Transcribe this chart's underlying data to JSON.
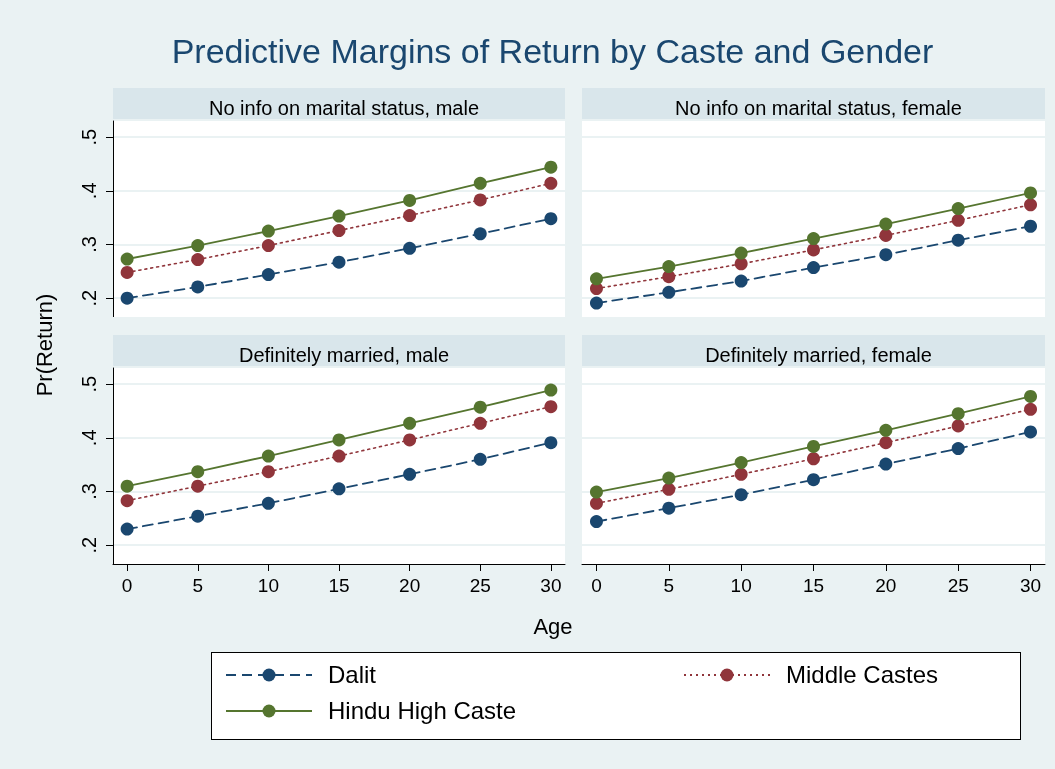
{
  "chart_data": [
    {
      "type": "line",
      "title": "No info on marital status, male",
      "annotations": [
        "Predictive Margins of Return by Caste and Gender"
      ],
      "ylabel": "Pr(Return)",
      "legend": "bottom",
      "marker": "circle",
      "grid": "y",
      "tick_labels": "y",
      "x": [
        0,
        5,
        10,
        15,
        20,
        25,
        30
      ],
      "xlim": [
        -1,
        31
      ],
      "ylim": [
        0.165,
        0.53
      ],
      "xticks": [
        0,
        5,
        10,
        15,
        20,
        25,
        30
      ],
      "yticks": [
        {
          "value": 0.2,
          "label": ".2"
        },
        {
          "value": 0.3,
          "label": ".3"
        },
        {
          "value": 0.4,
          "label": ".4"
        },
        {
          "value": 0.5,
          "label": ".5"
        }
      ],
      "series": [
        {
          "name": "Dalit",
          "color": "#1a476f",
          "line_style": "dashed",
          "values": [
            0.2,
            0.221,
            0.244,
            0.267,
            0.293,
            0.32,
            0.348
          ]
        },
        {
          "name": "Middle Castes",
          "color": "#90353b",
          "line_style": "dotted",
          "values": [
            0.248,
            0.272,
            0.298,
            0.326,
            0.354,
            0.383,
            0.414
          ]
        },
        {
          "name": "Hindu High Caste",
          "color": "#55752f",
          "line_style": "solid",
          "values": [
            0.273,
            0.298,
            0.325,
            0.353,
            0.382,
            0.414,
            0.444
          ]
        }
      ]
    },
    {
      "type": "line",
      "title": "No info on marital status, female",
      "marker": "circle",
      "grid": "y",
      "tick_labels": false,
      "x": [
        0,
        5,
        10,
        15,
        20,
        25,
        30
      ],
      "xlim": [
        -1,
        31
      ],
      "ylim": [
        0.165,
        0.53
      ],
      "xticks": [
        0,
        5,
        10,
        15,
        20,
        25,
        30
      ],
      "yticks": [
        0.2,
        0.3,
        0.4,
        0.5
      ],
      "series": [
        {
          "color": "#1a476f",
          "line_style": "dashed",
          "values": [
            0.191,
            0.211,
            0.232,
            0.257,
            0.281,
            0.308,
            0.334
          ]
        },
        {
          "color": "#90353b",
          "line_style": "dotted",
          "values": [
            0.218,
            0.24,
            0.264,
            0.29,
            0.317,
            0.345,
            0.374
          ]
        },
        {
          "color": "#55752f",
          "line_style": "solid",
          "values": [
            0.236,
            0.259,
            0.284,
            0.311,
            0.338,
            0.367,
            0.396
          ]
        }
      ]
    },
    {
      "type": "line",
      "title": "Definitely married, male",
      "xlabel": "Age",
      "marker": "circle",
      "grid": "y",
      "x": [
        0,
        5,
        10,
        15,
        20,
        25,
        30
      ],
      "xlim": [
        -1,
        31
      ],
      "ylim": [
        0.165,
        0.53
      ],
      "xticks": [
        0,
        5,
        10,
        15,
        20,
        25,
        30
      ],
      "yticks": [
        {
          "value": 0.2,
          "label": ".2"
        },
        {
          "value": 0.3,
          "label": ".3"
        },
        {
          "value": 0.4,
          "label": ".4"
        },
        {
          "value": 0.5,
          "label": ".5"
        }
      ],
      "series": [
        {
          "color": "#1a476f",
          "line_style": "dashed",
          "values": [
            0.23,
            0.254,
            0.278,
            0.305,
            0.332,
            0.36,
            0.391
          ]
        },
        {
          "color": "#90353b",
          "line_style": "dotted",
          "values": [
            0.283,
            0.31,
            0.337,
            0.366,
            0.396,
            0.427,
            0.458
          ]
        },
        {
          "color": "#55752f",
          "line_style": "solid",
          "values": [
            0.31,
            0.337,
            0.366,
            0.396,
            0.427,
            0.457,
            0.489
          ]
        }
      ]
    },
    {
      "type": "line",
      "title": "Definitely married, female",
      "marker": "circle",
      "grid": "y",
      "tick_labels": "x",
      "x": [
        0,
        5,
        10,
        15,
        20,
        25,
        30
      ],
      "xlim": [
        -1,
        31
      ],
      "ylim": [
        0.165,
        0.53
      ],
      "xticks": [
        0,
        5,
        10,
        15,
        20,
        25,
        30
      ],
      "yticks": [
        0.2,
        0.3,
        0.4,
        0.5
      ],
      "series": [
        {
          "color": "#1a476f",
          "line_style": "dashed",
          "values": [
            0.244,
            0.269,
            0.294,
            0.322,
            0.351,
            0.38,
            0.411
          ]
        },
        {
          "color": "#90353b",
          "line_style": "dotted",
          "values": [
            0.278,
            0.304,
            0.332,
            0.361,
            0.391,
            0.422,
            0.453
          ]
        },
        {
          "color": "#55752f",
          "line_style": "solid",
          "values": [
            0.299,
            0.325,
            0.354,
            0.384,
            0.414,
            0.445,
            0.477
          ]
        }
      ]
    }
  ]
}
